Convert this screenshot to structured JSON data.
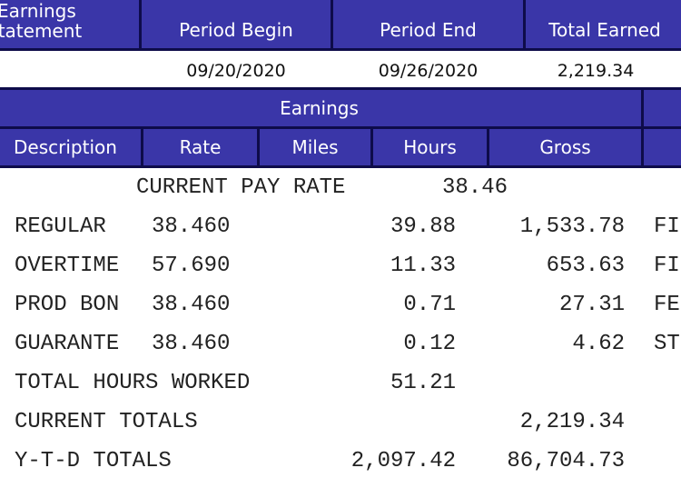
{
  "header": {
    "title_top": "Earnings",
    "title_statement": "Statement",
    "period_begin_label": "Period Begin",
    "period_end_label": "Period End",
    "total_earned_label": "Total Earned",
    "period_begin": "09/20/2020",
    "period_end": "09/26/2020",
    "total_earned": "2,219.34"
  },
  "earnings_table": {
    "section_title": "Earnings",
    "columns": [
      "Description",
      "Rate",
      "Miles",
      "Hours",
      "Gross"
    ],
    "current_pay_rate_label": "CURRENT PAY RATE",
    "current_pay_rate_value": "38.46",
    "rows": [
      {
        "desc": "REGULAR",
        "rate": "38.460",
        "hours": "39.88",
        "gross": "1,533.78",
        "side": "FI"
      },
      {
        "desc": "OVERTIME",
        "rate": "57.690",
        "hours": "11.33",
        "gross": "653.63",
        "side": "FI"
      },
      {
        "desc": "PROD BON",
        "rate": "38.460",
        "hours": "0.71",
        "gross": "27.31",
        "side": "FE"
      },
      {
        "desc": "GUARANTE",
        "rate": "38.460",
        "hours": "0.12",
        "gross": "4.62",
        "side": "ST"
      }
    ],
    "total_hours_label": "TOTAL HOURS WORKED",
    "total_hours_value": "51.21",
    "current_totals_label": "CURRENT TOTALS",
    "current_totals_value": "2,219.34",
    "ytd_totals_label": "Y-T-D TOTALS",
    "ytd_hours_value": "2,097.42",
    "ytd_gross_value": "86,704.73"
  },
  "colors": {
    "header_fill": "#3a36a8",
    "header_border": "#0e0c4a"
  }
}
